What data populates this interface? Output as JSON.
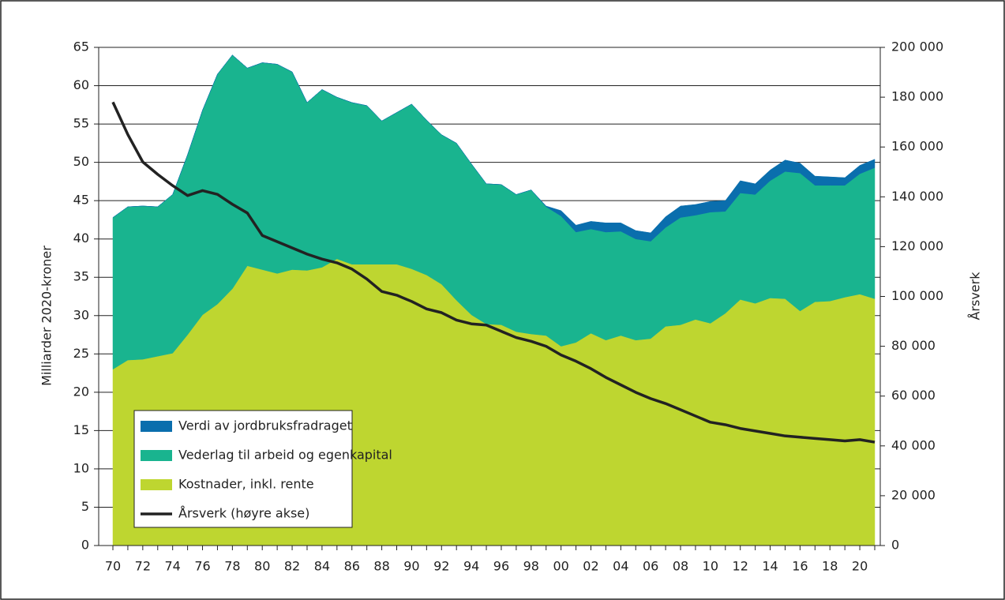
{
  "chart_data": {
    "type": "stacked-area-line",
    "y_label": "Milliarder 2020-kroner",
    "y2_label": "Årsverk",
    "categories": [
      "70",
      null,
      "72",
      null,
      "74",
      null,
      "76",
      null,
      "78",
      null,
      "80",
      null,
      "82",
      null,
      "84",
      null,
      "86",
      null,
      "88",
      null,
      "90",
      null,
      "92",
      null,
      "94",
      null,
      "96",
      null,
      "98",
      null,
      "00",
      null,
      "02",
      null,
      "04",
      null,
      "06",
      null,
      "08",
      null,
      "10",
      null,
      "12",
      null,
      "14",
      null,
      "16",
      null,
      "18",
      null,
      "20",
      null
    ],
    "series": [
      {
        "name": "Kostnader, inkl. rente",
        "color": "#bed630",
        "values": [
          23,
          24.2,
          24.3,
          24.7,
          25.1,
          27.5,
          30.1,
          31.5,
          33.5,
          36.5,
          36,
          35.5,
          36,
          35.9,
          36.3,
          37.4,
          36.7,
          36.7,
          36.7,
          36.7,
          36.1,
          35.3,
          34.1,
          32,
          30.1,
          28.9,
          28.8,
          27.9,
          27.6,
          27.4,
          26,
          26.5,
          27.7,
          26.8,
          27.4,
          26.8,
          27,
          28.6,
          28.8,
          29.5,
          29,
          30.3,
          32.1,
          31.6,
          32.3,
          32.2,
          30.6,
          31.8,
          31.9,
          32.4,
          32.8,
          32.2
        ]
      },
      {
        "name": "Vederlag til arbeid og egenkapital",
        "color": "#19b48f",
        "values": [
          19.8,
          20,
          20,
          19.5,
          20.7,
          23.5,
          26.7,
          30,
          30.5,
          25.8,
          27,
          27.3,
          25.8,
          21.9,
          23.2,
          21.1,
          21.1,
          20.7,
          18.7,
          19.8,
          21.5,
          20.2,
          19.5,
          20.5,
          19.7,
          18.3,
          18.3,
          17.9,
          18.8,
          16.8,
          17,
          14.4,
          13.6,
          14.1,
          13.6,
          13.2,
          12.7,
          12.9,
          14,
          13.6,
          14.5,
          13.3,
          13.9,
          14.2,
          15.3,
          16.6,
          18,
          15.2,
          15.1,
          14.6,
          15.7,
          17.1
        ]
      },
      {
        "name": "Verdi av jordbruksfradraget",
        "color": "#0a6ead",
        "values": [
          0,
          0,
          0,
          0,
          0,
          0,
          0,
          0,
          0,
          0,
          0,
          0,
          0,
          0,
          0,
          0,
          0,
          0,
          0,
          0,
          0,
          0,
          0,
          0,
          0,
          0,
          0,
          0,
          0,
          0.1,
          0.7,
          0.9,
          1,
          1.2,
          1.1,
          1.1,
          1.1,
          1.4,
          1.5,
          1.4,
          1.4,
          1.4,
          1.6,
          1.4,
          1.4,
          1.5,
          1.3,
          1.2,
          1.1,
          1,
          1.1,
          1.1
        ]
      },
      {
        "name": "Årsverk (høyre akse)",
        "color": "#222222",
        "axis": "y2",
        "values": [
          178000,
          165000,
          154000,
          149000,
          144500,
          140500,
          142500,
          141000,
          137000,
          133500,
          124500,
          122000,
          119500,
          117000,
          115000,
          113500,
          111000,
          107000,
          102000,
          100500,
          98000,
          95000,
          93500,
          90500,
          89000,
          88500,
          86000,
          83500,
          82000,
          80000,
          76500,
          74000,
          71000,
          67500,
          64500,
          61500,
          59000,
          57000,
          54500,
          52000,
          49500,
          48500,
          47000,
          46000,
          45000,
          44000,
          43500,
          43000,
          42500,
          42000,
          42500,
          41500
        ]
      }
    ],
    "ylim": [
      0,
      65
    ],
    "yticks": [
      0,
      5,
      10,
      15,
      20,
      25,
      30,
      35,
      40,
      45,
      50,
      55,
      60,
      65
    ],
    "y2lim": [
      0,
      200000
    ],
    "y2ticks": [
      0,
      {
        "value": 20000,
        "label": "20 000"
      },
      {
        "value": 40000,
        "label": "40 000"
      },
      {
        "value": 60000,
        "label": "60 000"
      },
      {
        "value": 80000,
        "label": "80 000"
      },
      {
        "value": 100000,
        "label": "100 000"
      },
      {
        "value": 120000,
        "label": "120 000"
      },
      {
        "value": 140000,
        "label": "140 000"
      },
      {
        "value": 160000,
        "label": "160 000"
      },
      {
        "value": 180000,
        "label": "180 000"
      },
      {
        "value": 200000,
        "label": "200 000"
      }
    ],
    "grid": true,
    "legend": "lower left"
  }
}
